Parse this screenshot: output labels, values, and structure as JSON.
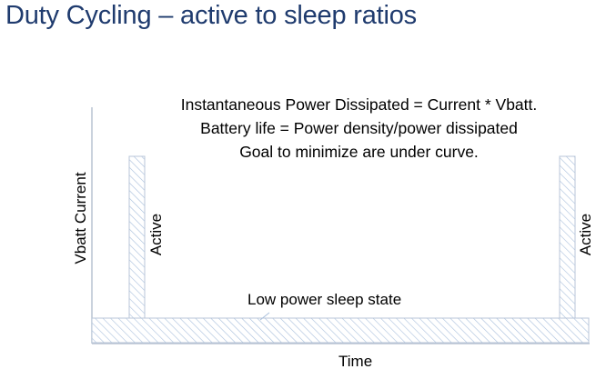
{
  "slide": {
    "title": "Duty Cycling – active to sleep ratios"
  },
  "explanation": {
    "line1": "Instantaneous Power Dissipated = Current * Vbatt.",
    "line2": "Battery life = Power density/power dissipated",
    "line3": "Goal to minimize are under curve."
  },
  "diagram": {
    "y_axis_label": "Vbatt Current",
    "x_axis_label": "Time",
    "sleep_label": "Low power sleep state",
    "active_left_label": "Active",
    "active_right_label": "Active",
    "hatch_color": "#9fb7d6",
    "axis_color": "#b8c3d2"
  }
}
